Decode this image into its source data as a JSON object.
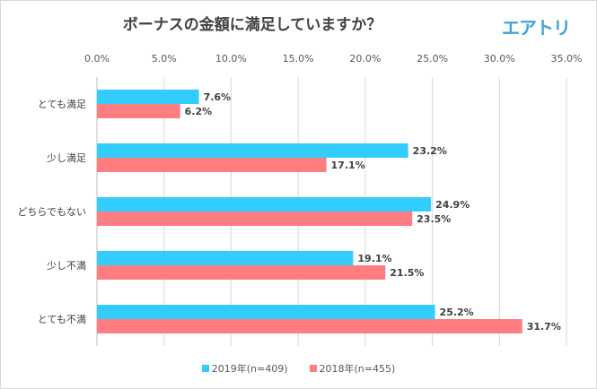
{
  "title": "ボーナスの金額に満足していますか？",
  "logo": "エアトリ",
  "chart_data": {
    "type": "bar",
    "orientation": "horizontal",
    "title": "ボーナスの金額に満足していますか？",
    "categories": [
      "とても満足",
      "少し満足",
      "どちらでもない",
      "少し不満",
      "とても不満"
    ],
    "series": [
      {
        "name": "2019年(n=409)",
        "color": "#33ccff",
        "values": [
          7.6,
          23.2,
          24.9,
          19.1,
          25.2
        ],
        "labels": [
          "7.6%",
          "23.2%",
          "24.9%",
          "19.1%",
          "25.2%"
        ]
      },
      {
        "name": "2018年(n=455)",
        "color": "#ff7c80",
        "values": [
          6.2,
          17.1,
          23.5,
          21.5,
          31.7
        ],
        "labels": [
          "6.2%",
          "17.1%",
          "23.5%",
          "21.5%",
          "31.7%"
        ]
      }
    ],
    "xlim": [
      0,
      35
    ],
    "xticks": [
      "0.0%",
      "5.0%",
      "10.0%",
      "15.0%",
      "20.0%",
      "25.0%",
      "30.0%",
      "35.0%"
    ],
    "xaxis_position": "top",
    "grid": true,
    "legend": "bottom"
  }
}
